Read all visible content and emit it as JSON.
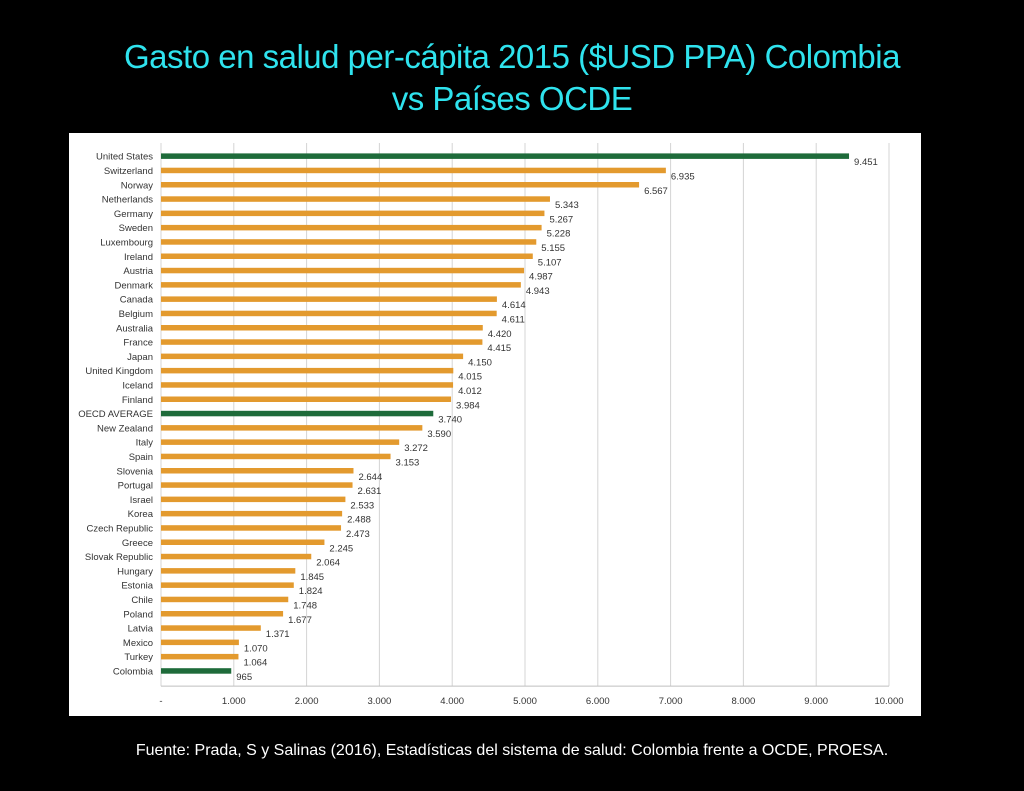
{
  "slide": {
    "title_line1": "Gasto en salud per-cápita 2015 ($USD PPA) Colombia",
    "title_line2": "vs Países OCDE",
    "source": "Fuente: Prada, S y Salinas (2016), Estadísticas del sistema de salud: Colombia frente a OCDE, PROESA."
  },
  "chart_data": {
    "type": "bar",
    "orientation": "horizontal",
    "categories": [
      "United States",
      "Switzerland",
      "Norway",
      "Netherlands",
      "Germany",
      "Sweden",
      "Luxembourg",
      "Ireland",
      "Austria",
      "Denmark",
      "Canada",
      "Belgium",
      "Australia",
      "France",
      "Japan",
      "United Kingdom",
      "Iceland",
      "Finland",
      "OECD AVERAGE",
      "New Zealand",
      "Italy",
      "Spain",
      "Slovenia",
      "Portugal",
      "Israel",
      "Korea",
      "Czech Republic",
      "Greece",
      "Slovak Republic",
      "Hungary",
      "Estonia",
      "Chile",
      "Poland",
      "Latvia",
      "Mexico",
      "Turkey",
      "Colombia"
    ],
    "values": [
      9451,
      6935,
      6567,
      5343,
      5267,
      5228,
      5155,
      5107,
      4987,
      4943,
      4614,
      4611,
      4420,
      4415,
      4150,
      4015,
      4012,
      3984,
      3740,
      3590,
      3272,
      3153,
      2644,
      2631,
      2533,
      2488,
      2473,
      2245,
      2064,
      1845,
      1824,
      1748,
      1677,
      1371,
      1070,
      1064,
      965
    ],
    "value_labels": [
      "9.451",
      "6.935",
      "6.567",
      "5.343",
      "5.267",
      "5.228",
      "5.155",
      "5.107",
      "4.987",
      "4.943",
      "4.614",
      "4.611",
      "4.420",
      "4.415",
      "4.150",
      "4.015",
      "4.012",
      "3.984",
      "3.740",
      "3.590",
      "3.272",
      "3.153",
      "2.644",
      "2.631",
      "2.533",
      "2.488",
      "2.473",
      "2.245",
      "2.064",
      "1.845",
      "1.824",
      "1.748",
      "1.677",
      "1.371",
      "1.070",
      "1.064",
      "965"
    ],
    "highlight_categories": [
      "United States",
      "OECD AVERAGE",
      "Colombia"
    ],
    "xlim": [
      0,
      10000
    ],
    "x_ticks": [
      0,
      1000,
      2000,
      3000,
      4000,
      5000,
      6000,
      7000,
      8000,
      9000,
      10000
    ],
    "x_tick_labels": [
      "-",
      "1.000",
      "2.000",
      "3.000",
      "4.000",
      "5.000",
      "6.000",
      "7.000",
      "8.000",
      "9.000",
      "10.000"
    ],
    "grid": true,
    "colors": {
      "bar": "#e39a2e",
      "highlight": "#1e6b3a",
      "grid": "#d4d4d4",
      "text": "#333333"
    }
  }
}
